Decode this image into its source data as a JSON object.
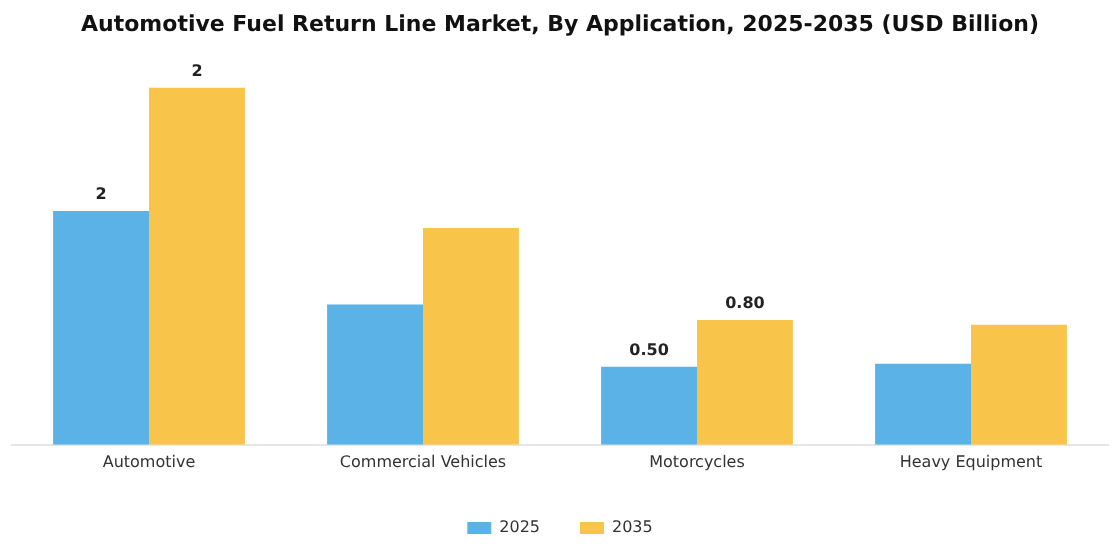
{
  "chart_data": {
    "type": "bar",
    "title": "Automotive Fuel Return Line Market, By Application, 2025-2035 (USD Billion)",
    "categories": [
      "Automotive",
      "Commercial Vehicles",
      "Motorcycles",
      "Heavy Equipment"
    ],
    "series": [
      {
        "name": "2025",
        "color": "#5ab2e6",
        "values": [
          1.5,
          0.9,
          0.5,
          0.52
        ],
        "value_labels": [
          "2",
          null,
          "0.50",
          null
        ]
      },
      {
        "name": "2035",
        "color": "#f8c449",
        "values": [
          2.29,
          1.39,
          0.8,
          0.77
        ],
        "value_labels": [
          "2",
          null,
          "0.80",
          null
        ]
      }
    ],
    "legend": "bottom"
  }
}
